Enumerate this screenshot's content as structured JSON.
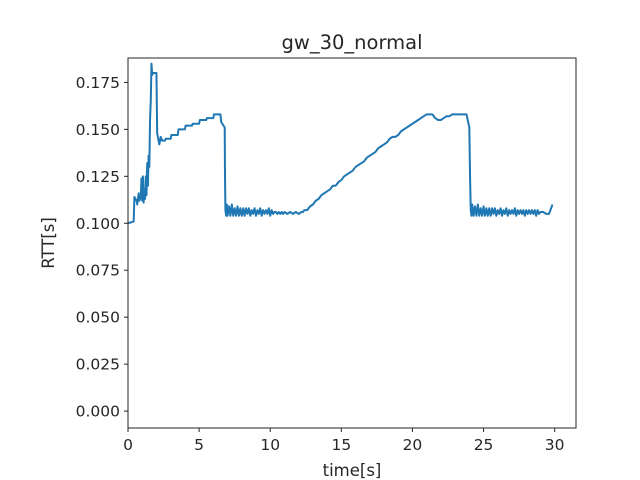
{
  "chart_data": {
    "type": "line",
    "title": "gw_30_normal",
    "xlabel": "time[s]",
    "ylabel": "RTT[s]",
    "xlim": [
      0,
      31.5
    ],
    "ylim": [
      -0.009,
      0.188
    ],
    "xticks": [
      0,
      5,
      10,
      15,
      20,
      25,
      30
    ],
    "xtick_labels": [
      "0",
      "5",
      "10",
      "15",
      "20",
      "25",
      "30"
    ],
    "yticks": [
      0.0,
      0.025,
      0.05,
      0.075,
      0.1,
      0.125,
      0.15,
      0.175
    ],
    "ytick_labels": [
      "0.000",
      "0.025",
      "0.050",
      "0.075",
      "0.100",
      "0.125",
      "0.150",
      "0.175"
    ],
    "grid": false,
    "series": [
      {
        "color": "#1f77b4",
        "x": [
          0.0,
          0.4,
          0.45,
          0.6,
          0.65,
          0.75,
          0.8,
          0.9,
          0.95,
          1.0,
          1.05,
          1.1,
          1.15,
          1.2,
          1.25,
          1.3,
          1.35,
          1.4,
          1.45,
          1.5,
          1.55,
          1.6,
          1.65,
          1.7,
          1.75,
          1.8,
          2.0,
          2.05,
          2.1,
          2.2,
          2.3,
          2.4,
          2.6,
          2.65,
          2.8,
          3.0,
          3.05,
          3.5,
          3.55,
          4.0,
          4.05,
          4.5,
          4.55,
          5.0,
          5.05,
          5.5,
          5.55,
          6.0,
          6.05,
          6.5,
          6.55,
          6.8,
          6.82,
          6.85,
          6.9,
          6.95,
          7.0,
          7.1,
          7.2,
          7.3,
          7.4,
          7.5,
          7.6,
          7.7,
          7.8,
          7.9,
          8.0,
          8.1,
          8.2,
          8.3,
          8.4,
          8.5,
          8.6,
          8.7,
          8.8,
          8.9,
          9.0,
          9.1,
          9.2,
          9.3,
          9.4,
          9.5,
          9.6,
          9.7,
          9.8,
          9.9,
          10.0,
          10.1,
          10.2,
          10.3,
          10.4,
          10.5,
          10.6,
          10.7,
          10.8,
          10.9,
          11.0,
          11.2,
          11.4,
          11.6,
          11.8,
          12.0,
          12.2,
          12.3,
          12.4,
          12.5,
          12.6,
          12.8,
          13.0,
          13.2,
          13.4,
          13.6,
          13.8,
          14.0,
          14.2,
          14.4,
          14.6,
          14.8,
          15.0,
          15.2,
          15.4,
          15.6,
          15.8,
          16.0,
          16.2,
          16.4,
          16.6,
          16.8,
          17.0,
          17.2,
          17.4,
          17.6,
          17.8,
          18.0,
          18.2,
          18.4,
          18.6,
          18.8,
          19.0,
          19.2,
          19.4,
          19.6,
          19.8,
          20.0,
          20.2,
          20.4,
          20.6,
          20.8,
          21.0,
          21.2,
          21.4,
          21.6,
          21.8,
          22.0,
          22.2,
          22.4,
          22.6,
          22.8,
          23.0,
          23.2,
          23.4,
          23.6,
          23.8,
          24.0,
          24.05,
          24.1,
          24.15,
          24.2,
          24.3,
          24.4,
          24.5,
          24.6,
          24.7,
          24.8,
          24.9,
          25.0,
          25.1,
          25.2,
          25.3,
          25.4,
          25.5,
          25.6,
          25.7,
          25.8,
          25.9,
          26.0,
          26.1,
          26.2,
          26.3,
          26.4,
          26.5,
          26.6,
          26.7,
          26.8,
          26.9,
          27.0,
          27.1,
          27.2,
          27.3,
          27.4,
          27.5,
          27.6,
          27.7,
          27.8,
          27.9,
          28.0,
          28.1,
          28.2,
          28.3,
          28.4,
          28.5,
          28.6,
          28.7,
          28.8,
          28.9,
          29.0,
          29.2,
          29.4,
          29.6,
          29.8,
          29.85
        ],
        "y": [
          0.1,
          0.101,
          0.114,
          0.112,
          0.11,
          0.116,
          0.112,
          0.114,
          0.124,
          0.112,
          0.125,
          0.111,
          0.118,
          0.113,
          0.125,
          0.115,
          0.132,
          0.12,
          0.136,
          0.13,
          0.155,
          0.165,
          0.185,
          0.179,
          0.18,
          0.18,
          0.18,
          0.148,
          0.146,
          0.142,
          0.146,
          0.144,
          0.144,
          0.145,
          0.145,
          0.145,
          0.147,
          0.147,
          0.15,
          0.15,
          0.152,
          0.152,
          0.153,
          0.153,
          0.155,
          0.155,
          0.156,
          0.156,
          0.158,
          0.158,
          0.154,
          0.151,
          0.125,
          0.107,
          0.104,
          0.11,
          0.104,
          0.109,
          0.104,
          0.11,
          0.104,
          0.108,
          0.104,
          0.109,
          0.104,
          0.108,
          0.104,
          0.108,
          0.104,
          0.108,
          0.105,
          0.108,
          0.104,
          0.107,
          0.105,
          0.108,
          0.104,
          0.107,
          0.105,
          0.108,
          0.104,
          0.107,
          0.105,
          0.107,
          0.105,
          0.108,
          0.104,
          0.107,
          0.105,
          0.106,
          0.106,
          0.105,
          0.106,
          0.105,
          0.106,
          0.105,
          0.106,
          0.105,
          0.106,
          0.105,
          0.106,
          0.105,
          0.106,
          0.106,
          0.107,
          0.107,
          0.107,
          0.109,
          0.11,
          0.112,
          0.113,
          0.115,
          0.116,
          0.117,
          0.118,
          0.12,
          0.12,
          0.122,
          0.123,
          0.125,
          0.126,
          0.127,
          0.128,
          0.13,
          0.131,
          0.132,
          0.133,
          0.135,
          0.136,
          0.137,
          0.138,
          0.14,
          0.141,
          0.142,
          0.143,
          0.145,
          0.146,
          0.146,
          0.147,
          0.149,
          0.15,
          0.151,
          0.152,
          0.153,
          0.154,
          0.155,
          0.156,
          0.157,
          0.158,
          0.158,
          0.158,
          0.156,
          0.155,
          0.155,
          0.156,
          0.157,
          0.157,
          0.158,
          0.158,
          0.158,
          0.158,
          0.158,
          0.158,
          0.151,
          0.125,
          0.107,
          0.104,
          0.11,
          0.104,
          0.109,
          0.104,
          0.11,
          0.104,
          0.108,
          0.104,
          0.109,
          0.104,
          0.108,
          0.104,
          0.108,
          0.104,
          0.108,
          0.105,
          0.108,
          0.104,
          0.107,
          0.105,
          0.108,
          0.104,
          0.107,
          0.105,
          0.108,
          0.104,
          0.107,
          0.105,
          0.107,
          0.105,
          0.108,
          0.104,
          0.107,
          0.105,
          0.107,
          0.105,
          0.107,
          0.104,
          0.107,
          0.105,
          0.107,
          0.105,
          0.107,
          0.105,
          0.107,
          0.104,
          0.107,
          0.105,
          0.106,
          0.106,
          0.105,
          0.105,
          0.109,
          0.11
        ]
      }
    ]
  }
}
